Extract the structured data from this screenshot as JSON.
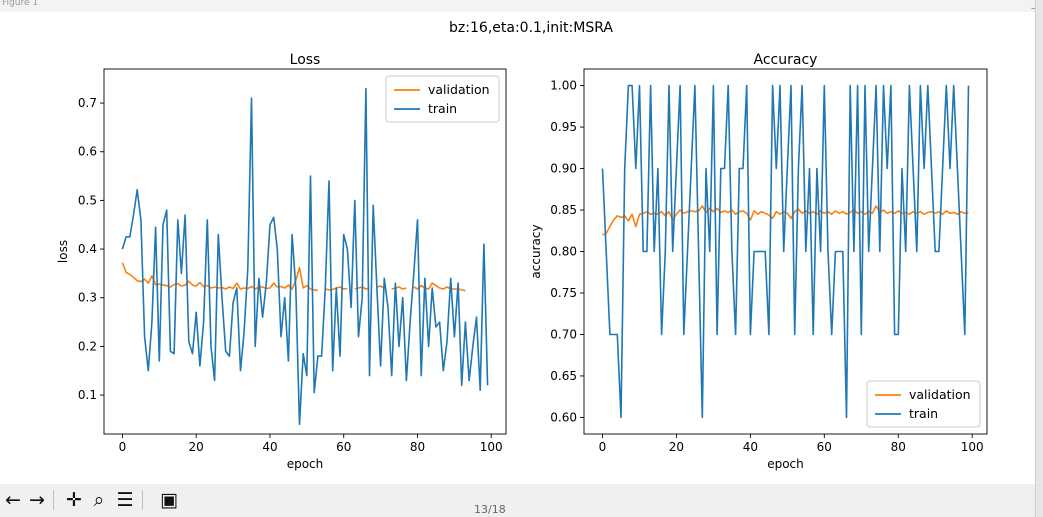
{
  "window": {
    "title": "Figure 1",
    "close_glyph": "_"
  },
  "figure": {
    "suptitle": "bz:16,eta:0.1,init:MSRA"
  },
  "toolbar": {
    "buttons": [
      {
        "name": "back-arrow-icon",
        "glyph": "←"
      },
      {
        "name": "forward-arrow-icon",
        "glyph": "→"
      },
      {
        "name": "pan-icon",
        "glyph": "✛"
      },
      {
        "name": "zoom-magnifier-icon",
        "glyph": "⌕"
      },
      {
        "name": "subplots-configure-icon",
        "glyph": "☰"
      },
      {
        "name": "save-icon",
        "glyph": "▣"
      }
    ],
    "page_indicator": "13/18"
  },
  "chart_data": [
    {
      "type": "line",
      "title": "Loss",
      "xlabel": "epoch",
      "ylabel": "loss",
      "xlim": [
        -5,
        104
      ],
      "ylim": [
        0.02,
        0.77
      ],
      "xticks": [
        0,
        20,
        40,
        60,
        80,
        100
      ],
      "yticks": [
        0.1,
        0.2,
        0.3,
        0.4,
        0.5,
        0.6,
        0.7
      ],
      "ytick_labels": [
        "0.1",
        "0.2",
        "0.3",
        "0.4",
        "0.5",
        "0.6",
        "0.7"
      ],
      "legend": "upper right",
      "series": [
        {
          "name": "validation",
          "color": "#ff7f0e",
          "x": [
            0,
            1,
            2,
            3,
            4,
            5,
            6,
            7,
            8,
            9,
            10,
            11,
            12,
            13,
            14,
            15,
            16,
            17,
            18,
            19,
            20,
            21,
            22,
            23,
            24,
            25,
            26,
            27,
            28,
            29,
            30,
            31,
            32,
            33,
            34,
            35,
            36,
            37,
            38,
            39,
            40,
            41,
            42,
            43,
            44,
            45,
            46,
            47,
            48,
            49,
            50,
            51,
            52,
            53,
            54,
            55,
            56,
            57,
            58,
            59,
            60,
            61,
            62,
            63,
            64,
            65,
            66,
            67,
            68,
            69,
            70,
            71,
            72,
            73,
            74,
            75,
            76,
            77,
            78,
            79,
            80,
            81,
            82,
            83,
            84,
            85,
            86,
            87,
            88,
            89,
            90,
            91,
            92,
            93
          ],
          "y": [
            0.372,
            0.352,
            0.348,
            0.342,
            0.335,
            0.333,
            0.338,
            0.33,
            0.345,
            0.327,
            0.328,
            0.326,
            0.325,
            0.322,
            0.327,
            0.329,
            0.324,
            0.326,
            0.334,
            0.326,
            0.324,
            0.331,
            0.323,
            0.325,
            0.32,
            0.322,
            0.32,
            0.321,
            0.318,
            0.322,
            0.319,
            0.33,
            0.318,
            0.32,
            0.319,
            0.323,
            0.318,
            0.322,
            0.322,
            0.319,
            0.32,
            0.33,
            0.322,
            0.323,
            0.32,
            0.326,
            0.318,
            0.335,
            0.362,
            0.32,
            0.325,
            0.318,
            0.316,
            0.315,
            null,
            0.318,
            0.316,
            0.317,
            0.32,
            0.322,
            0.318,
            0.319,
            null,
            0.318,
            0.32,
            0.322,
            0.318,
            0.32,
            null,
            0.322,
            0.324,
            0.32,
            null,
            0.318,
            0.32,
            0.322,
            0.318,
            0.32,
            null,
            0.322,
            0.318,
            0.325,
            0.32,
            0.318,
            0.33,
            0.325,
            0.32,
            0.318,
            0.322,
            0.318,
            0.318,
            0.318,
            0.316,
            0.314
          ]
        },
        {
          "name": "train",
          "color": "#1f77b4",
          "x": [
            0,
            1,
            2,
            3,
            4,
            5,
            6,
            7,
            8,
            9,
            10,
            11,
            12,
            13,
            14,
            15,
            16,
            17,
            18,
            19,
            20,
            21,
            22,
            23,
            24,
            25,
            26,
            27,
            28,
            29,
            30,
            31,
            32,
            33,
            34,
            35,
            36,
            37,
            38,
            39,
            40,
            41,
            42,
            43,
            44,
            45,
            46,
            47,
            48,
            49,
            50,
            51,
            52,
            53,
            54,
            55,
            56,
            57,
            58,
            59,
            60,
            61,
            62,
            63,
            64,
            65,
            66,
            67,
            68,
            69,
            70,
            71,
            72,
            73,
            74,
            75,
            76,
            77,
            78,
            79,
            80,
            81,
            82,
            83,
            84,
            85,
            86,
            87,
            88,
            89,
            90,
            91,
            92,
            93,
            94,
            95,
            96,
            97,
            98,
            99
          ],
          "y": [
            0.4,
            0.425,
            0.425,
            0.47,
            0.522,
            0.46,
            0.22,
            0.15,
            0.25,
            0.445,
            0.17,
            0.45,
            0.48,
            0.19,
            0.185,
            0.46,
            0.35,
            0.47,
            0.21,
            0.185,
            0.27,
            0.16,
            0.25,
            0.46,
            0.2,
            0.13,
            0.43,
            0.3,
            0.19,
            0.18,
            0.29,
            0.32,
            0.15,
            0.23,
            0.36,
            0.71,
            0.2,
            0.34,
            0.26,
            0.33,
            0.45,
            0.465,
            0.4,
            0.22,
            0.3,
            0.17,
            0.43,
            0.32,
            0.04,
            0.185,
            0.14,
            0.55,
            0.105,
            0.18,
            0.18,
            0.32,
            0.54,
            0.15,
            0.32,
            0.18,
            0.43,
            0.4,
            0.28,
            0.5,
            0.22,
            0.3,
            0.73,
            0.14,
            0.49,
            0.32,
            0.16,
            0.34,
            0.28,
            0.14,
            0.33,
            0.2,
            0.3,
            0.13,
            0.25,
            0.35,
            0.46,
            0.14,
            0.34,
            0.2,
            0.32,
            0.24,
            0.25,
            0.15,
            0.21,
            0.34,
            0.22,
            0.33,
            0.12,
            0.25,
            0.13,
            0.2,
            0.26,
            0.11,
            0.41,
            0.12
          ]
        }
      ]
    },
    {
      "type": "line",
      "title": "Accuracy",
      "xlabel": "epoch",
      "ylabel": "accuracy",
      "xlim": [
        -5,
        104
      ],
      "ylim": [
        0.58,
        1.02
      ],
      "xticks": [
        0,
        20,
        40,
        60,
        80,
        100
      ],
      "yticks": [
        0.6,
        0.65,
        0.7,
        0.75,
        0.8,
        0.85,
        0.9,
        0.95,
        1.0
      ],
      "ytick_labels": [
        "0.60",
        "0.65",
        "0.70",
        "0.75",
        "0.80",
        "0.85",
        "0.90",
        "0.95",
        "1.00"
      ],
      "legend": "lower right",
      "series": [
        {
          "name": "validation",
          "color": "#ff7f0e",
          "x": [
            0,
            1,
            2,
            3,
            4,
            5,
            6,
            7,
            8,
            9,
            10,
            11,
            12,
            13,
            14,
            15,
            16,
            17,
            18,
            19,
            20,
            21,
            22,
            23,
            24,
            25,
            26,
            27,
            28,
            29,
            30,
            31,
            32,
            33,
            34,
            35,
            36,
            37,
            38,
            39,
            40,
            41,
            42,
            43,
            44,
            45,
            46,
            47,
            48,
            49,
            50,
            51,
            52,
            53,
            54,
            55,
            56,
            57,
            58,
            59,
            60,
            61,
            62,
            63,
            64,
            65,
            66,
            67,
            68,
            69,
            70,
            71,
            72,
            73,
            74,
            75,
            76,
            77,
            78,
            79,
            80,
            81,
            82,
            83,
            84,
            85,
            86,
            87,
            88,
            89,
            90,
            91,
            92,
            93,
            94,
            95,
            96,
            97,
            98,
            99
          ],
          "y": [
            0.82,
            0.822,
            0.83,
            0.838,
            0.843,
            0.841,
            0.843,
            0.837,
            0.845,
            0.83,
            0.845,
            0.846,
            0.848,
            0.845,
            0.846,
            0.845,
            0.848,
            0.843,
            0.848,
            0.838,
            0.845,
            0.85,
            0.846,
            0.848,
            0.849,
            0.848,
            0.849,
            0.855,
            0.847,
            0.852,
            0.848,
            0.852,
            0.847,
            0.849,
            0.847,
            0.85,
            0.845,
            0.848,
            0.849,
            0.846,
            0.838,
            0.849,
            0.845,
            0.848,
            0.846,
            0.844,
            0.84,
            0.848,
            0.845,
            0.848,
            0.846,
            0.84,
            0.848,
            0.851,
            0.846,
            0.849,
            0.846,
            0.848,
            0.845,
            0.849,
            0.846,
            0.848,
            0.845,
            0.849,
            0.846,
            0.848,
            0.845,
            0.847,
            0.85,
            0.846,
            0.848,
            0.845,
            0.848,
            0.846,
            0.855,
            0.847,
            0.85,
            0.846,
            0.848,
            0.846,
            0.849,
            0.846,
            0.847,
            0.845,
            0.848,
            0.846,
            0.848,
            0.845,
            0.847,
            0.848,
            0.846,
            0.848,
            0.845,
            0.849,
            0.846,
            0.847,
            0.845,
            0.848,
            0.846,
            0.847
          ]
        },
        {
          "name": "train",
          "color": "#1f77b4",
          "x": [
            0,
            1,
            2,
            3,
            4,
            5,
            6,
            7,
            8,
            9,
            10,
            11,
            12,
            13,
            14,
            15,
            16,
            17,
            18,
            19,
            20,
            21,
            22,
            23,
            24,
            25,
            26,
            27,
            28,
            29,
            30,
            31,
            32,
            33,
            34,
            35,
            36,
            37,
            38,
            39,
            40,
            41,
            42,
            43,
            44,
            45,
            46,
            47,
            48,
            49,
            50,
            51,
            52,
            53,
            54,
            55,
            56,
            57,
            58,
            59,
            60,
            61,
            62,
            63,
            64,
            65,
            66,
            67,
            68,
            69,
            70,
            71,
            72,
            73,
            74,
            75,
            76,
            77,
            78,
            79,
            80,
            81,
            82,
            83,
            84,
            85,
            86,
            87,
            88,
            89,
            90,
            91,
            92,
            93,
            94,
            95,
            96,
            97,
            98,
            99
          ],
          "y": [
            0.9,
            0.8,
            0.7,
            0.7,
            0.7,
            0.6,
            0.9,
            1.0,
            1.0,
            0.9,
            1.0,
            0.8,
            0.8,
            1.0,
            0.8,
            0.9,
            0.7,
            0.8,
            1.0,
            0.8,
            0.9,
            1.0,
            0.7,
            0.8,
            0.9,
            1.0,
            0.8,
            0.6,
            0.9,
            0.8,
            1.0,
            0.7,
            0.9,
            0.9,
            1.0,
            0.8,
            0.7,
            0.9,
            0.9,
            1.0,
            0.7,
            0.8,
            0.8,
            0.8,
            0.8,
            0.7,
            1.0,
            0.9,
            1.0,
            0.8,
            0.9,
            1.0,
            0.7,
            0.9,
            1.0,
            0.8,
            0.9,
            0.7,
            0.9,
            0.8,
            1.0,
            0.8,
            0.7,
            0.8,
            0.8,
            0.8,
            0.6,
            1.0,
            0.8,
            1.0,
            0.7,
            1.0,
            0.8,
            0.9,
            1.0,
            0.8,
            1.0,
            0.9,
            1.0,
            0.7,
            0.7,
            0.9,
            0.8,
            1.0,
            0.9,
            0.8,
            1.0,
            0.9,
            1.0,
            0.9,
            0.8,
            0.8,
            0.9,
            1.0,
            0.9,
            1.0,
            0.9,
            0.8,
            0.7,
            1.0
          ]
        }
      ]
    }
  ]
}
